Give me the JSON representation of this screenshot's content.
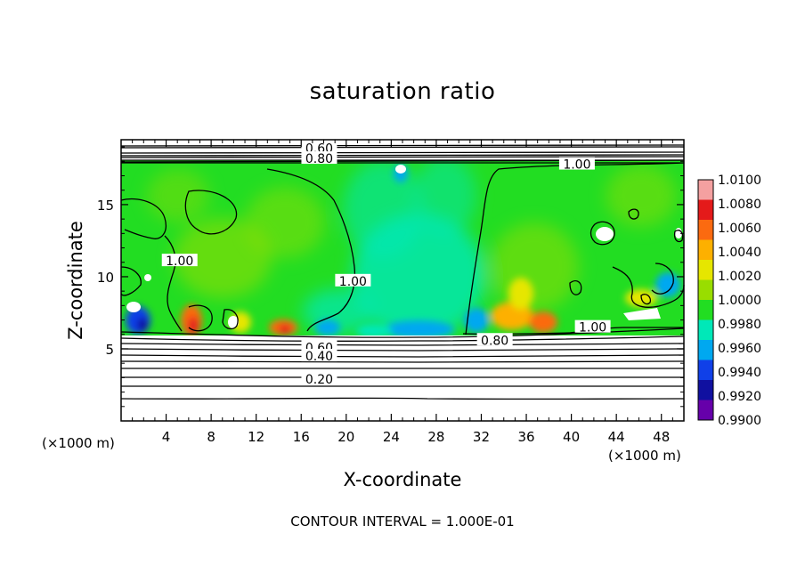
{
  "chart_data": {
    "type": "heatmap",
    "title": "saturation ratio",
    "xlabel": "X-coordinate",
    "ylabel": "Z-coordinate",
    "x_unit": "(×1000 m)",
    "x_unit_left": "(×1000 m)",
    "xlim": [
      0,
      50
    ],
    "ylim": [
      0,
      19.5
    ],
    "x_ticks": [
      4,
      8,
      12,
      16,
      20,
      24,
      28,
      32,
      36,
      40,
      44,
      48
    ],
    "y_ticks": [
      5,
      10,
      15
    ],
    "colorbar": {
      "levels": [
        "1.0100",
        "1.0080",
        "1.0060",
        "1.0040",
        "1.0020",
        "1.0000",
        "0.9980",
        "0.9960",
        "0.9940",
        "0.9920",
        "0.9900"
      ],
      "colors": [
        "#f4a0a0",
        "#e41a1a",
        "#fb6a10",
        "#fdb000",
        "#e6e600",
        "#99dd00",
        "#22dd22",
        "#00e8b8",
        "#00a8f0",
        "#1040e8",
        "#1010a0",
        "#6600aa"
      ]
    },
    "contour_labels": [
      {
        "text": "0.60",
        "x": 17.6,
        "z": 18.9
      },
      {
        "text": "0.80",
        "x": 17.6,
        "z": 18.2
      },
      {
        "text": "1.00",
        "x": 40.5,
        "z": 17.8
      },
      {
        "text": "1.00",
        "x": 5.2,
        "z": 11.1
      },
      {
        "text": "1.00",
        "x": 20.6,
        "z": 9.7
      },
      {
        "text": "1.00",
        "x": 41.9,
        "z": 6.5
      },
      {
        "text": "0.80",
        "x": 33.2,
        "z": 5.6
      },
      {
        "text": "0.60",
        "x": 17.6,
        "z": 5.1
      },
      {
        "text": "0.40",
        "x": 17.6,
        "z": 4.5
      },
      {
        "text": "0.20",
        "x": 17.6,
        "z": 2.9
      }
    ],
    "contour_interval": "CONTOUR INTERVAL = 1.000E-01"
  }
}
